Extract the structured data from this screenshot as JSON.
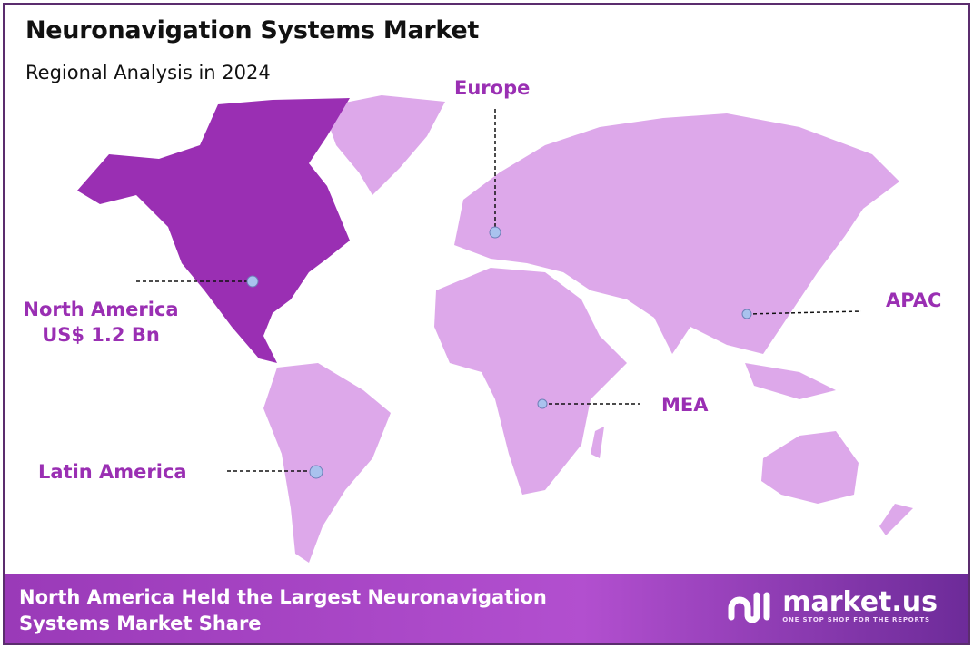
{
  "header": {
    "title": "Neuronavigation Systems Market",
    "subtitle": "Regional Analysis in 2024"
  },
  "regions": [
    {
      "name": "North America",
      "value": "US$ 1.2 Bn",
      "highlighted": true
    },
    {
      "name": "Europe",
      "value": null,
      "highlighted": false
    },
    {
      "name": "APAC",
      "value": null,
      "highlighted": false
    },
    {
      "name": "MEA",
      "value": null,
      "highlighted": false
    },
    {
      "name": "Latin America",
      "value": null,
      "highlighted": false
    }
  ],
  "colors": {
    "highlight": "#9a2fb3",
    "land": "#dda8ea",
    "marker": "#a9c2ee",
    "label": "#9a2fb3"
  },
  "footer": {
    "text_line1": "North America Held the Largest Neuronavigation",
    "text_line2": "Systems Market Share"
  },
  "logo": {
    "brand": "market.us",
    "tagline": "ONE STOP SHOP FOR THE REPORTS"
  }
}
